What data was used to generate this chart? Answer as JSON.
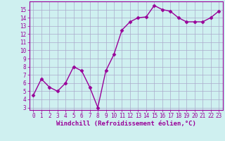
{
  "x": [
    0,
    1,
    2,
    3,
    4,
    5,
    6,
    7,
    8,
    9,
    10,
    11,
    12,
    13,
    14,
    15,
    16,
    17,
    18,
    19,
    20,
    21,
    22,
    23
  ],
  "y": [
    4.5,
    6.5,
    5.5,
    5.0,
    6.0,
    8.0,
    7.5,
    5.5,
    3.0,
    7.5,
    9.5,
    12.5,
    13.5,
    14.0,
    14.1,
    15.5,
    15.0,
    14.8,
    14.0,
    13.5,
    13.5,
    13.5,
    14.0,
    14.8
  ],
  "line_color": "#990099",
  "marker": "D",
  "marker_size": 2.5,
  "bg_color": "#cff0f0",
  "grid_color": "#aaaacc",
  "xlabel": "Windchill (Refroidissement éolien,°C)",
  "xlim": [
    -0.5,
    23.5
  ],
  "ylim": [
    2.7,
    16.0
  ],
  "yticks": [
    3,
    4,
    5,
    6,
    7,
    8,
    9,
    10,
    11,
    12,
    13,
    14,
    15
  ],
  "xticks": [
    0,
    1,
    2,
    3,
    4,
    5,
    6,
    7,
    8,
    9,
    10,
    11,
    12,
    13,
    14,
    15,
    16,
    17,
    18,
    19,
    20,
    21,
    22,
    23
  ],
  "tick_fontsize": 5.5,
  "xlabel_fontsize": 6.5,
  "line_width": 1.0
}
